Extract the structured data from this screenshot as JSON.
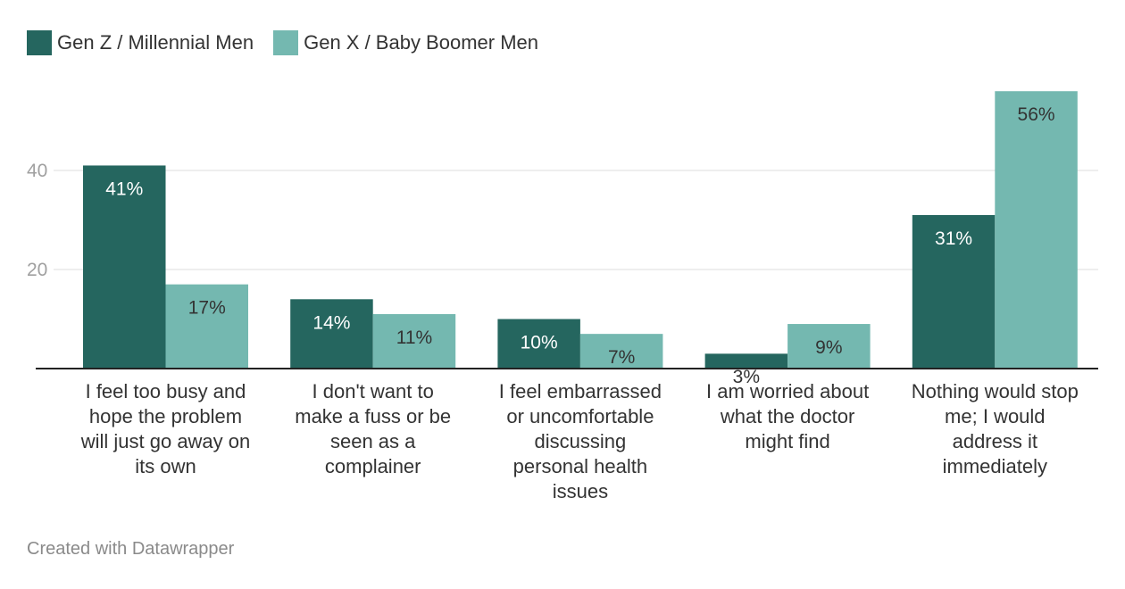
{
  "legend": {
    "series1": "Gen Z / Millennial Men",
    "series2": "Gen X / Baby Boomer Men"
  },
  "footer": "Created with Datawrapper",
  "colors": {
    "series1": "#25665f",
    "series2": "#74b8b0",
    "grid": "#dddddd",
    "axis": "#222222",
    "tick": "#a0a0a0"
  },
  "chart_data": {
    "type": "bar",
    "categories": [
      "I feel too busy and hope the problem will just go away on its own",
      "I don't want to make a fuss or be seen as a complainer",
      "I feel embarrassed or uncomfortable discussing personal health issues",
      "I am worried about what the doctor might find",
      "Nothing would stop me; I would address it immediately"
    ],
    "category_lines": [
      [
        "I feel too busy and",
        "hope the problem",
        "will just go away on",
        "its own"
      ],
      [
        "I don't want to",
        "make a fuss or be",
        "seen as a",
        "complainer"
      ],
      [
        "I feel embarrassed",
        "or uncomfortable",
        "discussing",
        "personal health",
        "issues"
      ],
      [
        "I am worried about",
        "what the doctor",
        "might find"
      ],
      [
        "Nothing would stop",
        "me; I would",
        "address it",
        "immediately"
      ]
    ],
    "series": [
      {
        "name": "Gen Z / Millennial Men",
        "values": [
          41,
          14,
          10,
          3,
          31
        ],
        "labels": [
          "41%",
          "14%",
          "10%",
          "3%",
          "31%"
        ]
      },
      {
        "name": "Gen X / Baby Boomer Men",
        "values": [
          17,
          11,
          7,
          9,
          56
        ],
        "labels": [
          "17%",
          "11%",
          "7%",
          "9%",
          "56%"
        ]
      }
    ],
    "yticks": [
      20,
      40
    ],
    "ylim": [
      0,
      60
    ],
    "grid": true,
    "legend_position": "top-left"
  }
}
